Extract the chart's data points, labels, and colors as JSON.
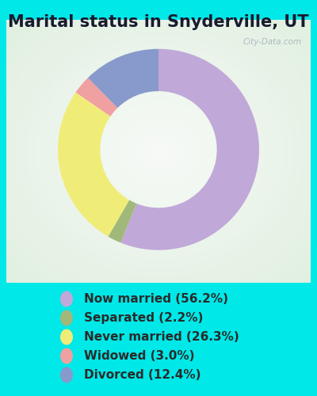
{
  "title": "Marital status in Snyderville, UT",
  "categories": [
    "Now married",
    "Separated",
    "Never married",
    "Widowed",
    "Divorced"
  ],
  "values": [
    56.2,
    2.2,
    26.3,
    3.0,
    12.4
  ],
  "colors": [
    "#c0a8d8",
    "#a0b87a",
    "#f0ec78",
    "#f0a0a0",
    "#8899cc"
  ],
  "legend_labels": [
    "Now married (56.2%)",
    "Separated (2.2%)",
    "Never married (26.3%)",
    "Widowed (3.0%)",
    "Divorced (12.4%)"
  ],
  "legend_colors": [
    "#c0a8d8",
    "#a0b87a",
    "#f0ec78",
    "#f0a0a0",
    "#8899cc"
  ],
  "bg_outer": "#00e8e8",
  "bg_panel_color": "#cce8cc",
  "watermark": "City-Data.com",
  "title_fontsize": 15,
  "legend_fontsize": 11,
  "donut_width": 0.42,
  "start_angle": 90
}
